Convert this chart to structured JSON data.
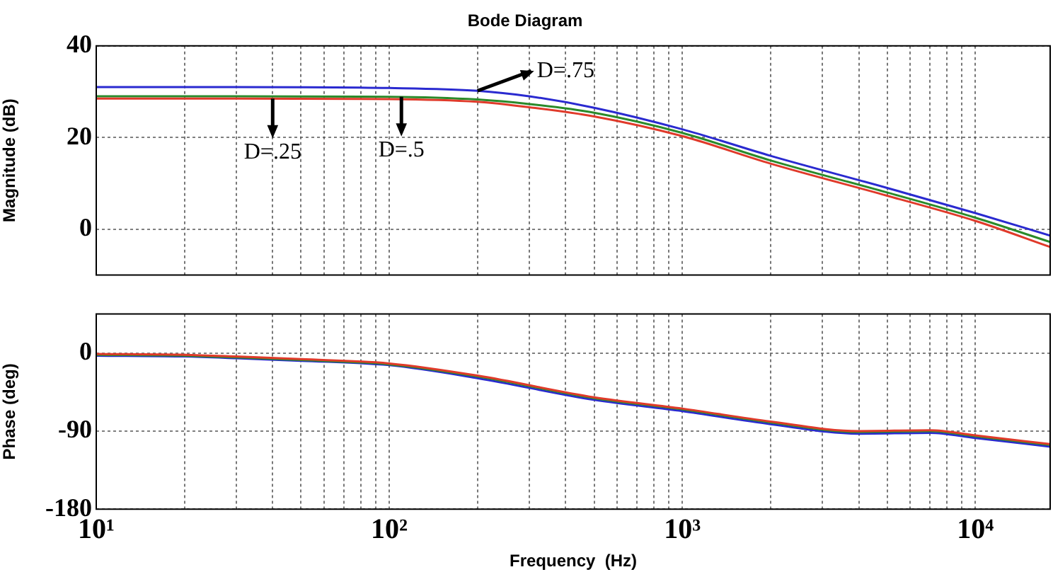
{
  "chart_data": [
    {
      "type": "line",
      "title": "Bode Diagram",
      "ylabel": "Magnitude (dB)",
      "log": "x",
      "grid": true,
      "marker": "none",
      "tick_labels": "y",
      "xlim": [
        10,
        18000
      ],
      "ylim": [
        -10,
        40
      ],
      "xticks": [
        {
          "value": 10,
          "label": null
        },
        {
          "value": 20,
          "label": null
        },
        {
          "value": 30,
          "label": null
        },
        {
          "value": 40,
          "label": null
        },
        {
          "value": 50,
          "label": null
        },
        {
          "value": 60,
          "label": null
        },
        {
          "value": 70,
          "label": null
        },
        {
          "value": 80,
          "label": null
        },
        {
          "value": 90,
          "label": null
        },
        {
          "value": 100,
          "label": null
        },
        {
          "value": 200,
          "label": null
        },
        {
          "value": 300,
          "label": null
        },
        {
          "value": 400,
          "label": null
        },
        {
          "value": 500,
          "label": null
        },
        {
          "value": 600,
          "label": null
        },
        {
          "value": 700,
          "label": null
        },
        {
          "value": 800,
          "label": null
        },
        {
          "value": 900,
          "label": null
        },
        {
          "value": 1000,
          "label": null
        },
        {
          "value": 2000,
          "label": null
        },
        {
          "value": 3000,
          "label": null
        },
        {
          "value": 4000,
          "label": null
        },
        {
          "value": 5000,
          "label": null
        },
        {
          "value": 6000,
          "label": null
        },
        {
          "value": 7000,
          "label": null
        },
        {
          "value": 8000,
          "label": null
        },
        {
          "value": 9000,
          "label": null
        },
        {
          "value": 10000,
          "label": null
        }
      ],
      "yticks": [
        0,
        20,
        40
      ],
      "x": [
        10,
        30,
        100,
        200,
        300,
        500,
        1000,
        2000,
        5000,
        10000,
        18000
      ],
      "series": [
        {
          "color": "#2a2ad0",
          "values": [
            31,
            31,
            30.8,
            30.2,
            29,
            26.5,
            21.8,
            16,
            9,
            3.5,
            -1.4
          ]
        },
        {
          "color": "#2a8a2a",
          "values": [
            29,
            29,
            28.9,
            28.3,
            27.3,
            25.4,
            21,
            15,
            8,
            2.5,
            -2.8
          ]
        },
        {
          "color": "#e03a2a",
          "values": [
            28.5,
            28.5,
            28.4,
            27.8,
            26.6,
            24.6,
            20.3,
            14.3,
            7.3,
            1.8,
            -3.9
          ]
        }
      ],
      "annotations": [
        {
          "text": "D=.75",
          "x": 200,
          "y": 30.2
        },
        {
          "text": "D=.25",
          "x": 40,
          "y": 28.5
        },
        {
          "text": "D=.5",
          "x": 110,
          "y": 28.9
        }
      ]
    },
    {
      "type": "line",
      "xlabel": "Frequency  (Hz)",
      "ylabel": "Phase (deg)",
      "log": "x",
      "grid": true,
      "marker": "none",
      "xlim": [
        10,
        18000
      ],
      "ylim": [
        -180,
        45
      ],
      "xticks": [
        {
          "value": 10,
          "label": "10¹"
        },
        {
          "value": 20,
          "label": null
        },
        {
          "value": 30,
          "label": null
        },
        {
          "value": 40,
          "label": null
        },
        {
          "value": 50,
          "label": null
        },
        {
          "value": 60,
          "label": null
        },
        {
          "value": 70,
          "label": null
        },
        {
          "value": 80,
          "label": null
        },
        {
          "value": 90,
          "label": null
        },
        {
          "value": 100,
          "label": "10²"
        },
        {
          "value": 200,
          "label": null
        },
        {
          "value": 300,
          "label": null
        },
        {
          "value": 400,
          "label": null
        },
        {
          "value": 500,
          "label": null
        },
        {
          "value": 600,
          "label": null
        },
        {
          "value": 700,
          "label": null
        },
        {
          "value": 800,
          "label": null
        },
        {
          "value": 900,
          "label": null
        },
        {
          "value": 1000,
          "label": "10³"
        },
        {
          "value": 2000,
          "label": null
        },
        {
          "value": 3000,
          "label": null
        },
        {
          "value": 4000,
          "label": null
        },
        {
          "value": 5000,
          "label": null
        },
        {
          "value": 6000,
          "label": null
        },
        {
          "value": 7000,
          "label": null
        },
        {
          "value": 8000,
          "label": null
        },
        {
          "value": 9000,
          "label": null
        },
        {
          "value": 10000,
          "label": "10⁴"
        }
      ],
      "yticks": [
        -180,
        -90,
        0
      ],
      "x": [
        10,
        20,
        30,
        50,
        100,
        200,
        500,
        1000,
        2000,
        4000,
        7000,
        10000,
        18000
      ],
      "series": [
        {
          "color": "#2a2ad0",
          "values": [
            -3,
            -4,
            -6,
            -9,
            -14,
            -29,
            -54,
            -67,
            -82,
            -93,
            -92,
            -98,
            -108
          ]
        },
        {
          "color": "#2a8a2a",
          "values": [
            -2,
            -3,
            -5,
            -8,
            -13,
            -27,
            -52,
            -65,
            -80,
            -91,
            -90,
            -96,
            -106
          ]
        },
        {
          "color": "#e03a2a",
          "values": [
            -1,
            -2,
            -4,
            -7,
            -12,
            -26,
            -51,
            -64,
            -79,
            -90,
            -89,
            -95,
            -105
          ]
        }
      ]
    }
  ]
}
